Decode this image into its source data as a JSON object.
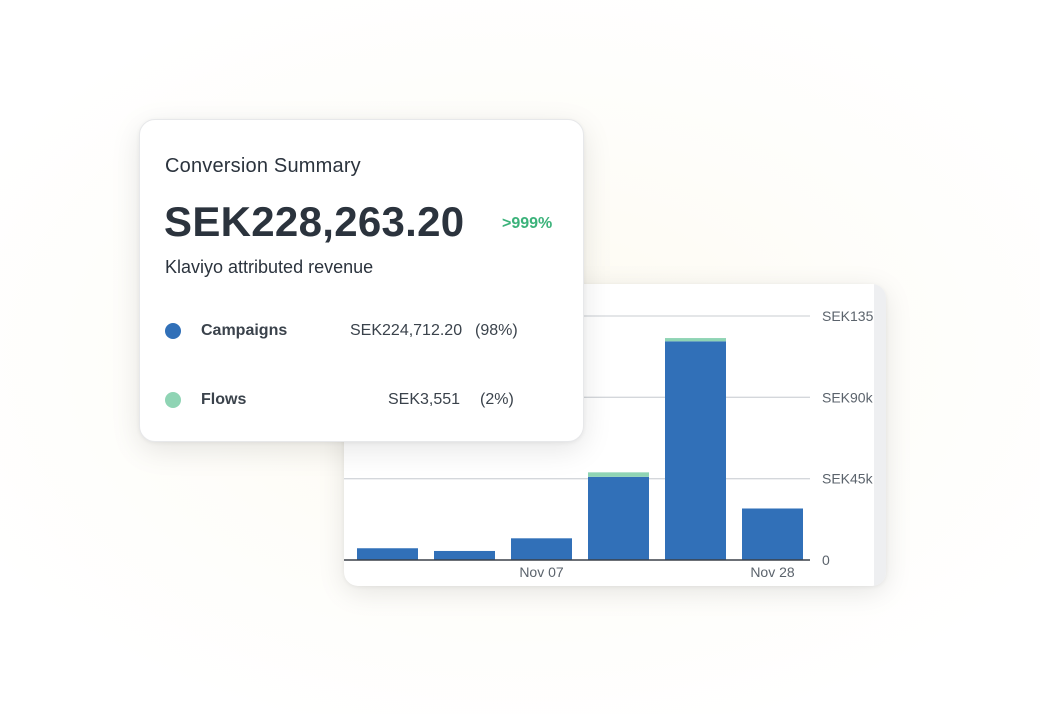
{
  "summary": {
    "title": "Conversion Summary",
    "amount": "SEK228,263.20",
    "change": ">999%",
    "subtitle": "Klaviyo attributed revenue",
    "legend": [
      {
        "label": "Campaigns",
        "value": "SEK224,712.20",
        "percent": "(98%)",
        "color": "#3170b8"
      },
      {
        "label": "Flows",
        "value": "SEK3,551",
        "percent": "(2%)",
        "color": "#8fd4b4"
      }
    ]
  },
  "chart_data": {
    "type": "bar",
    "stacked": true,
    "categories": [
      "",
      "",
      "Nov 07",
      "",
      "",
      "Nov 28"
    ],
    "series": [
      {
        "name": "Campaigns",
        "color": "#3170b8",
        "values": [
          6500,
          5000,
          12000,
          46000,
          121000,
          28500
        ]
      },
      {
        "name": "Flows",
        "color": "#8fd4b4",
        "values": [
          0,
          0,
          0,
          2500,
          1800,
          0
        ]
      }
    ],
    "ylim": [
      0,
      135000
    ],
    "yticks": [
      {
        "value": 0,
        "label": "0"
      },
      {
        "value": 45000,
        "label": "SEK45k"
      },
      {
        "value": 90000,
        "label": "SEK90k"
      },
      {
        "value": 135000,
        "label": "SEK135k"
      }
    ],
    "grid": true,
    "y_axis_position": "right"
  }
}
